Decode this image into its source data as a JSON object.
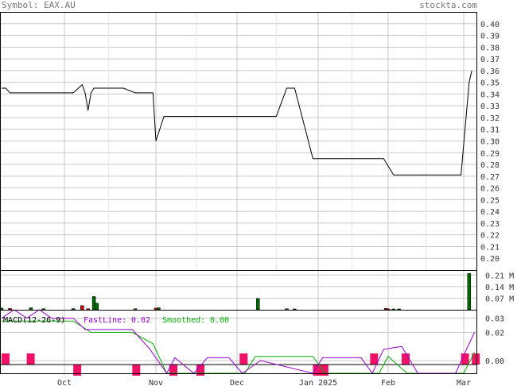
{
  "header": {
    "symbol_label": "Symbol: EAX.AU",
    "site_label": "stockta.com"
  },
  "colors": {
    "price_line": "#000000",
    "volume_up": "#006600",
    "volume_down": "#cc0000",
    "macd_line": "#9900cc",
    "macd_signal": "#00aa00",
    "macd_hist": "#ee1166",
    "grid": "#c8c8c8",
    "frame": "#000000"
  },
  "chart_data": [
    {
      "type": "line",
      "title": "",
      "series": [
        {
          "x": [
            "2024-09-16",
            "2024-09-17",
            "2024-09-18",
            "2024-09-23",
            "2024-09-30",
            "2024-10-04",
            "2024-10-07",
            "2024-10-08",
            "2024-10-09",
            "2024-10-10",
            "2024-10-11",
            "2024-10-14",
            "2024-10-21",
            "2024-10-25",
            "2024-10-28",
            "2024-10-29",
            "2024-10-30",
            "2024-10-31",
            "2024-11-01",
            "2024-11-04",
            "2024-11-11",
            "2024-11-18",
            "2024-11-25",
            "2024-12-02",
            "2024-12-09",
            "2024-12-16",
            "2024-12-20",
            "2024-12-23",
            "2024-12-30",
            "2025-01-06",
            "2025-01-13",
            "2025-01-20",
            "2025-01-27",
            "2025-01-30",
            "2025-02-03",
            "2025-02-10",
            "2025-02-17",
            "2025-02-24",
            "2025-02-28",
            "2025-03-03",
            "2025-03-04"
          ],
          "values": [
            0.345,
            0.345,
            0.341,
            0.341,
            0.341,
            0.341,
            0.348,
            0.341,
            0.326,
            0.341,
            0.345,
            0.345,
            0.345,
            0.341,
            0.341,
            0.341,
            0.341,
            0.341,
            0.3,
            0.321,
            0.321,
            0.321,
            0.321,
            0.321,
            0.321,
            0.321,
            0.345,
            0.345,
            0.285,
            0.285,
            0.285,
            0.285,
            0.285,
            0.285,
            0.271,
            0.271,
            0.271,
            0.271,
            0.271,
            0.35,
            0.36
          ]
        }
      ],
      "y_ticks": [
        "0.40",
        "0.39",
        "0.38",
        "0.37",
        "0.36",
        "0.35",
        "0.34",
        "0.33",
        "0.32",
        "0.31",
        "0.30",
        "0.29",
        "0.28",
        "0.27",
        "0.26",
        "0.25",
        "0.24",
        "0.23",
        "0.22",
        "0.21",
        "0.20"
      ],
      "x_ticks": [
        "Oct",
        "Nov",
        "Dec",
        "Jan 2025",
        "Feb",
        "Mar"
      ],
      "ylim": [
        0.19,
        0.41
      ],
      "grid": true
    },
    {
      "type": "bar",
      "title": "",
      "y_ticks": [
        "0.21 M",
        "0.14 M",
        "0.07 M"
      ],
      "ylim": [
        0,
        0.24
      ],
      "bars": [
        {
          "date": "2024-09-16",
          "value": 0.01,
          "dir": "up"
        },
        {
          "date": "2024-09-18",
          "value": 0.008,
          "dir": "down"
        },
        {
          "date": "2024-09-23",
          "value": 0.012,
          "dir": "up"
        },
        {
          "date": "2024-09-26",
          "value": 0.006,
          "dir": "up"
        },
        {
          "date": "2024-10-04",
          "value": 0.007,
          "dir": "up"
        },
        {
          "date": "2024-10-07",
          "value": 0.025,
          "dir": "down"
        },
        {
          "date": "2024-10-09",
          "value": 0.006,
          "dir": "down"
        },
        {
          "date": "2024-10-11",
          "value": 0.08,
          "dir": "up"
        },
        {
          "date": "2024-10-12",
          "value": 0.04,
          "dir": "up"
        },
        {
          "date": "2024-10-25",
          "value": 0.006,
          "dir": "up"
        },
        {
          "date": "2024-11-01",
          "value": 0.01,
          "dir": "down"
        },
        {
          "date": "2024-11-02",
          "value": 0.012,
          "dir": "up"
        },
        {
          "date": "2024-12-09",
          "value": 0.068,
          "dir": "up"
        },
        {
          "date": "2024-12-20",
          "value": 0.006,
          "dir": "up"
        },
        {
          "date": "2024-12-23",
          "value": 0.005,
          "dir": "up"
        },
        {
          "date": "2025-01-31",
          "value": 0.008,
          "dir": "down"
        },
        {
          "date": "2025-02-01",
          "value": 0.005,
          "dir": "down"
        },
        {
          "date": "2025-02-03",
          "value": 0.005,
          "dir": "up"
        },
        {
          "date": "2025-02-05",
          "value": 0.005,
          "dir": "up"
        },
        {
          "date": "2025-03-03",
          "value": 0.22,
          "dir": "up"
        }
      ]
    },
    {
      "type": "line",
      "title": "MACD(12-26-9)",
      "legend": [
        {
          "name": "FastLine:",
          "value": "0.02"
        },
        {
          "name": "Smoothed:",
          "value": "0.00"
        }
      ],
      "y_ticks": [
        "0.03",
        "0.02",
        "0.00"
      ],
      "ylim": [
        -0.009,
        0.036
      ]
    }
  ]
}
